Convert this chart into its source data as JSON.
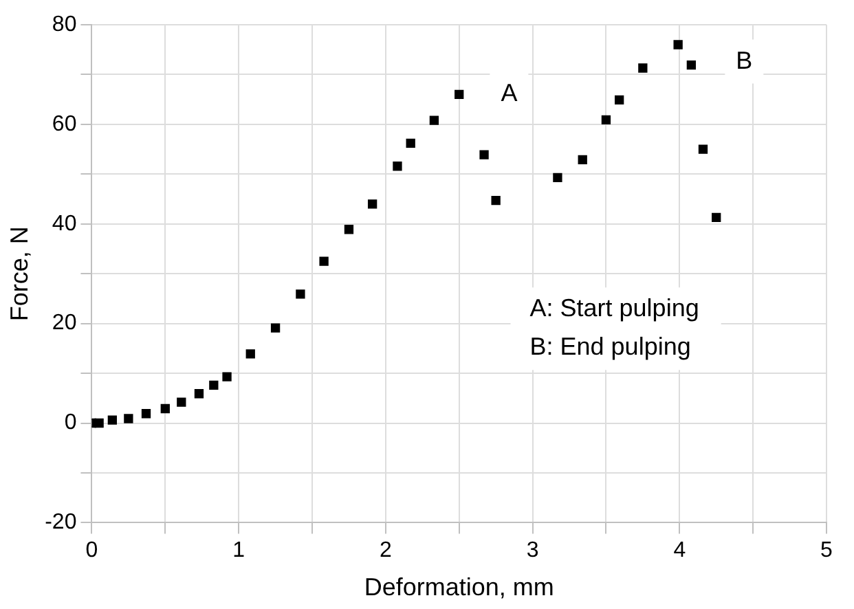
{
  "chart_data": {
    "type": "scatter",
    "xlabel": "Deformation, mm",
    "ylabel": "Force, N",
    "series": [
      {
        "color": "#000000",
        "x": [
          0,
          0.05,
          0.14,
          0.25,
          0.37,
          0.5,
          0.61,
          0.73,
          0.83,
          0.92,
          1.08,
          1.25,
          1.42,
          1.58,
          1.75,
          1.91,
          2.08,
          2.17,
          2.33,
          2.5,
          2.67,
          2.75,
          3.17,
          3.34,
          3.5,
          3.59,
          3.75,
          3.99,
          4.08,
          4.16,
          4.25
        ],
        "values": [
          0,
          0,
          0.6,
          0.9,
          1.9,
          2.9,
          4.2,
          5.9,
          7.6,
          9.3,
          13.9,
          19.1,
          25.9,
          32.5,
          38.9,
          44,
          51.6,
          56.2,
          60.8,
          66,
          53.9,
          44.7,
          49.3,
          52.9,
          60.9,
          64.9,
          71.3,
          76,
          71.9,
          55,
          41.3
        ]
      }
    ],
    "xlim": [
      0,
      5
    ],
    "ylim": [
      -20,
      80
    ],
    "xticks": [
      0,
      {
        "value": 0.5,
        "label": null
      },
      1,
      {
        "value": 1.5,
        "label": null
      },
      2,
      {
        "value": 2.5,
        "label": null
      },
      3,
      {
        "value": 3.5,
        "label": null
      },
      4,
      {
        "value": 4.5,
        "label": null
      },
      5
    ],
    "yticks": [
      -20,
      {
        "value": -10,
        "label": null
      },
      0,
      {
        "value": 10,
        "label": null
      },
      20,
      {
        "value": 30,
        "label": null
      },
      40,
      {
        "value": 50,
        "label": null
      },
      60,
      {
        "value": 70,
        "label": null
      },
      80
    ],
    "grid": true,
    "marker": "square",
    "annotations": [
      {
        "text": "A",
        "x": 2.84,
        "y": 66
      },
      {
        "text": "B",
        "x": 4.44,
        "y": 72.6
      },
      "A: Start pulping",
      "B: End pulping"
    ]
  }
}
